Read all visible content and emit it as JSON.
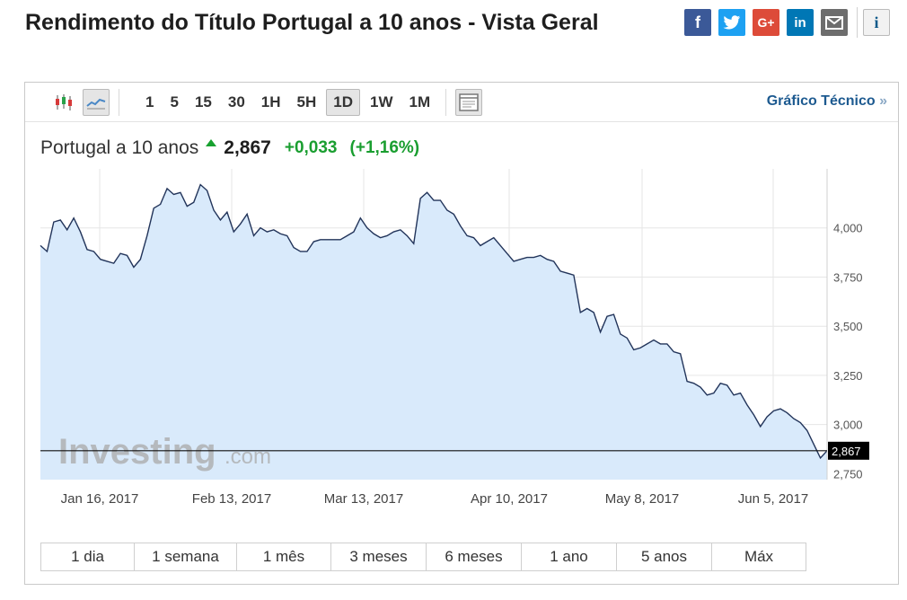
{
  "page": {
    "title": "Rendimento do Título Portugal a 10 anos - Vista Geral"
  },
  "share": {
    "facebook_icon": "f",
    "twitter_icon": "twitter-bird-icon",
    "googleplus_icon": "G+",
    "linkedin_icon": "in",
    "email_icon": "envelope-icon",
    "info_icon": "i"
  },
  "toolbar": {
    "chart_type_icons": [
      "candlestick-icon",
      "line-chart-icon"
    ],
    "intervals": [
      "1",
      "5",
      "15",
      "30",
      "1H",
      "5H",
      "1D",
      "1W",
      "1M"
    ],
    "active_interval": "1D",
    "layout_icon": "panel-layout-icon",
    "technical_link": "Gráfico Técnico",
    "technical_arrow": "»"
  },
  "quote": {
    "name": "Portugal a 10 anos",
    "price": "2,867",
    "change": "+0,033",
    "change_pct": "(+1,16%)",
    "up_color": "#1a9e30"
  },
  "watermark": {
    "brand": "Investing",
    "suffix": ".com"
  },
  "chart_data": {
    "type": "area",
    "x_tick_labels": [
      "Jan 16, 2017",
      "Feb 13, 2017",
      "Mar 13, 2017",
      "Apr 10, 2017",
      "May 8, 2017",
      "Jun 5, 2017"
    ],
    "y_tick_labels": [
      "4,000",
      "3,750",
      "3,500",
      "3,250",
      "3,000",
      "2,750"
    ],
    "y_ticks": [
      4.0,
      3.75,
      3.5,
      3.25,
      3.0,
      2.75
    ],
    "ylim": [
      2.72,
      4.3
    ],
    "current_value": 2.867,
    "current_label": "2,867",
    "grid": true,
    "line_color": "#22345a",
    "fill_color": "#d9eafb",
    "values": [
      3.91,
      3.88,
      4.03,
      4.04,
      3.99,
      4.05,
      3.98,
      3.89,
      3.88,
      3.84,
      3.83,
      3.82,
      3.87,
      3.86,
      3.8,
      3.84,
      3.96,
      4.1,
      4.12,
      4.2,
      4.17,
      4.18,
      4.11,
      4.13,
      4.22,
      4.19,
      4.09,
      4.04,
      4.08,
      3.98,
      4.02,
      4.07,
      3.96,
      4.0,
      3.98,
      3.99,
      3.97,
      3.96,
      3.9,
      3.88,
      3.88,
      3.93,
      3.94,
      3.94,
      3.94,
      3.94,
      3.96,
      3.98,
      4.05,
      4.0,
      3.97,
      3.95,
      3.96,
      3.98,
      3.99,
      3.96,
      3.92,
      4.15,
      4.18,
      4.14,
      4.14,
      4.09,
      4.07,
      4.01,
      3.96,
      3.95,
      3.91,
      3.93,
      3.95,
      3.91,
      3.87,
      3.83,
      3.84,
      3.85,
      3.85,
      3.86,
      3.84,
      3.83,
      3.78,
      3.77,
      3.76,
      3.57,
      3.59,
      3.57,
      3.47,
      3.55,
      3.56,
      3.46,
      3.44,
      3.38,
      3.39,
      3.41,
      3.43,
      3.41,
      3.41,
      3.37,
      3.36,
      3.22,
      3.21,
      3.19,
      3.15,
      3.16,
      3.21,
      3.2,
      3.15,
      3.16,
      3.1,
      3.05,
      2.99,
      3.04,
      3.07,
      3.08,
      3.06,
      3.03,
      3.01,
      2.97,
      2.9,
      2.83,
      2.867
    ]
  },
  "range_buttons": [
    "1 dia",
    "1 semana",
    "1 mês",
    "3 meses",
    "6 meses",
    "1 ano",
    "5 anos",
    "Máx"
  ]
}
